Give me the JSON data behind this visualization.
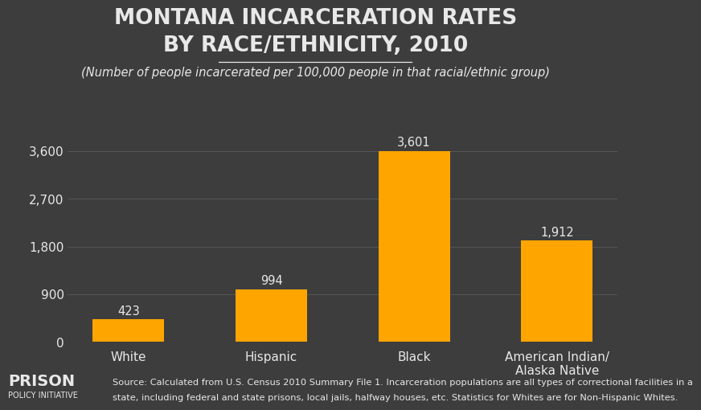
{
  "title_line1": "MONTANA INCARCERATION RATES",
  "title_line2": "BY RACE/ETHNICITY, 2010",
  "subtitle": "(Number of people incarcerated per 100,000 people in that racial/ethnic group)",
  "categories": [
    "White",
    "Hispanic",
    "Black",
    "American Indian/\nAlaska Native"
  ],
  "values": [
    423,
    994,
    3601,
    1912
  ],
  "bar_color": "#FFA500",
  "background_color": "#3d3d3d",
  "text_color": "#e8e8e8",
  "grid_color": "#555555",
  "yticks": [
    0,
    900,
    1800,
    2700,
    3600
  ],
  "ytick_labels": [
    "0",
    "900",
    "1,800",
    "2,700",
    "3,600"
  ],
  "ylim": [
    0,
    3950
  ],
  "source_text_line1": "Source: Calculated from U.S. Census 2010 Summary File 1. Incarceration populations are all types of correctional facilities in a",
  "source_text_line2": "state, including federal and state prisons, local jails, halfway houses, etc. Statistics for Whites are for Non-Hispanic Whites.",
  "logo_text_prison": "PRISON",
  "logo_text_policy": "POLICY INITIATIVE",
  "title_fontsize": 19,
  "subtitle_fontsize": 10.5,
  "tick_fontsize": 11,
  "label_fontsize": 11,
  "value_fontsize": 10.5,
  "source_fontsize": 8.2,
  "logo_fontsize": 14,
  "logo_sub_fontsize": 7
}
